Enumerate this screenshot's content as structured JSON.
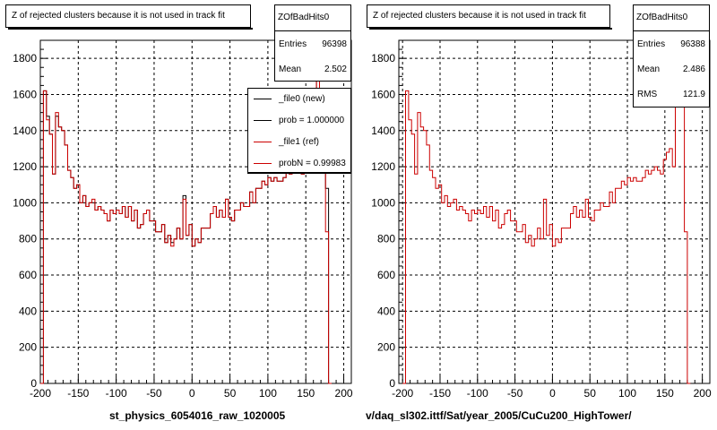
{
  "chart_data": [
    {
      "type": "histogram",
      "title": "Z of rejected clusters  because it is not used in track fit",
      "xlabel": "st_physics_6054016_raw_1020005",
      "xlim": [
        -200,
        210
      ],
      "ylim": [
        0,
        1900
      ],
      "xticks": [
        -200,
        -150,
        -100,
        -50,
        0,
        50,
        100,
        150,
        200
      ],
      "yticks": [
        0,
        200,
        400,
        600,
        800,
        1000,
        1200,
        1400,
        1600,
        1800
      ],
      "grid": true,
      "stats": {
        "name": "ZOfBadHits0",
        "entries_label": "Entries",
        "entries": "96398",
        "mean_label": "Mean",
        "mean": "2.502"
      },
      "legend": {
        "placement": "top-right",
        "entries": [
          {
            "label": "_file0 (new)",
            "color": "#000000"
          },
          {
            "label": "prob = 1.000000",
            "color": "#000000"
          },
          {
            "label": "_file1 (ref)",
            "color": "#cc0000"
          },
          {
            "label": "probN = 0.99983",
            "color": "#cc0000"
          }
        ]
      },
      "bin_width": 4,
      "bins_start": -200,
      "series": [
        {
          "color": "#000000",
          "values": [
            0,
            1620,
            1480,
            1380,
            1160,
            1480,
            1420,
            1400,
            1320,
            1180,
            1140,
            1080,
            1100,
            1000,
            1040,
            980,
            1000,
            1000,
            960,
            980,
            960,
            940,
            900,
            960,
            940,
            960,
            940,
            980,
            920,
            980,
            900,
            960,
            860,
            880,
            940,
            960,
            900,
            900,
            840,
            840,
            880,
            780,
            820,
            780,
            800,
            860,
            800,
            1040,
            820,
            880,
            760,
            800,
            780,
            860,
            860,
            860,
            940,
            980,
            920,
            960,
            920,
            1020,
            920,
            900,
            960,
            960,
            1000,
            980,
            980,
            1060,
            1000,
            1080,
            1080,
            1120,
            1100,
            1140,
            1120,
            1140,
            1120,
            1120,
            1140,
            1180,
            1160,
            1180,
            1200,
            1180,
            1160,
            1240,
            1280,
            1300,
            1200,
            1840,
            1560,
            1540,
            1080,
            0
          ]
        },
        {
          "color": "#cc0000",
          "values": [
            0,
            1620,
            1460,
            1380,
            1160,
            1500,
            1420,
            1400,
            1320,
            1180,
            1140,
            1080,
            1100,
            1000,
            1040,
            980,
            1000,
            1020,
            960,
            980,
            960,
            940,
            900,
            960,
            940,
            960,
            940,
            980,
            920,
            980,
            900,
            960,
            860,
            880,
            940,
            960,
            900,
            900,
            840,
            840,
            880,
            780,
            820,
            760,
            800,
            860,
            800,
            1020,
            820,
            880,
            760,
            800,
            780,
            860,
            860,
            860,
            940,
            980,
            920,
            960,
            920,
            1020,
            920,
            900,
            960,
            960,
            1000,
            980,
            980,
            1060,
            1000,
            1080,
            1080,
            1120,
            1100,
            1140,
            1120,
            1140,
            1120,
            1120,
            1140,
            1180,
            1160,
            1180,
            1200,
            1180,
            1160,
            1240,
            1280,
            1300,
            1200,
            1820,
            1560,
            1540,
            840,
            0
          ]
        }
      ]
    },
    {
      "type": "histogram",
      "title": "Z of rejected clusters  because it is not used in track fit",
      "xlabel": "v/daq_sl302.ittf/Sat/year_2005/CuCu200_HighTower/",
      "xlim": [
        -205,
        210
      ],
      "ylim": [
        0,
        1900
      ],
      "xticks": [
        -200,
        -150,
        -100,
        -50,
        0,
        50,
        100,
        150,
        200
      ],
      "yticks": [
        0,
        200,
        400,
        600,
        800,
        1000,
        1200,
        1400,
        1600,
        1800
      ],
      "grid": true,
      "stats": {
        "name": "ZOfBadHits0",
        "entries_label": "Entries",
        "entries": "96388",
        "mean_label": "Mean",
        "mean": "2.486",
        "rms_label": "RMS",
        "rms": "121.9"
      },
      "bin_width": 4,
      "bins_start": -200,
      "series": [
        {
          "color": "#cc0000",
          "values": [
            0,
            1620,
            1460,
            1380,
            1160,
            1500,
            1420,
            1400,
            1320,
            1180,
            1140,
            1080,
            1100,
            1000,
            1040,
            980,
            1000,
            1020,
            960,
            980,
            960,
            940,
            900,
            960,
            940,
            960,
            940,
            980,
            920,
            980,
            900,
            960,
            860,
            880,
            940,
            960,
            900,
            900,
            840,
            840,
            880,
            780,
            820,
            760,
            800,
            860,
            800,
            1020,
            820,
            880,
            760,
            800,
            780,
            860,
            860,
            860,
            940,
            980,
            920,
            960,
            920,
            1020,
            920,
            900,
            960,
            960,
            1000,
            980,
            980,
            1060,
            1000,
            1080,
            1080,
            1120,
            1100,
            1140,
            1120,
            1140,
            1120,
            1120,
            1140,
            1180,
            1160,
            1180,
            1200,
            1180,
            1160,
            1240,
            1280,
            1300,
            1200,
            1820,
            1560,
            1540,
            840,
            0
          ]
        }
      ]
    }
  ]
}
